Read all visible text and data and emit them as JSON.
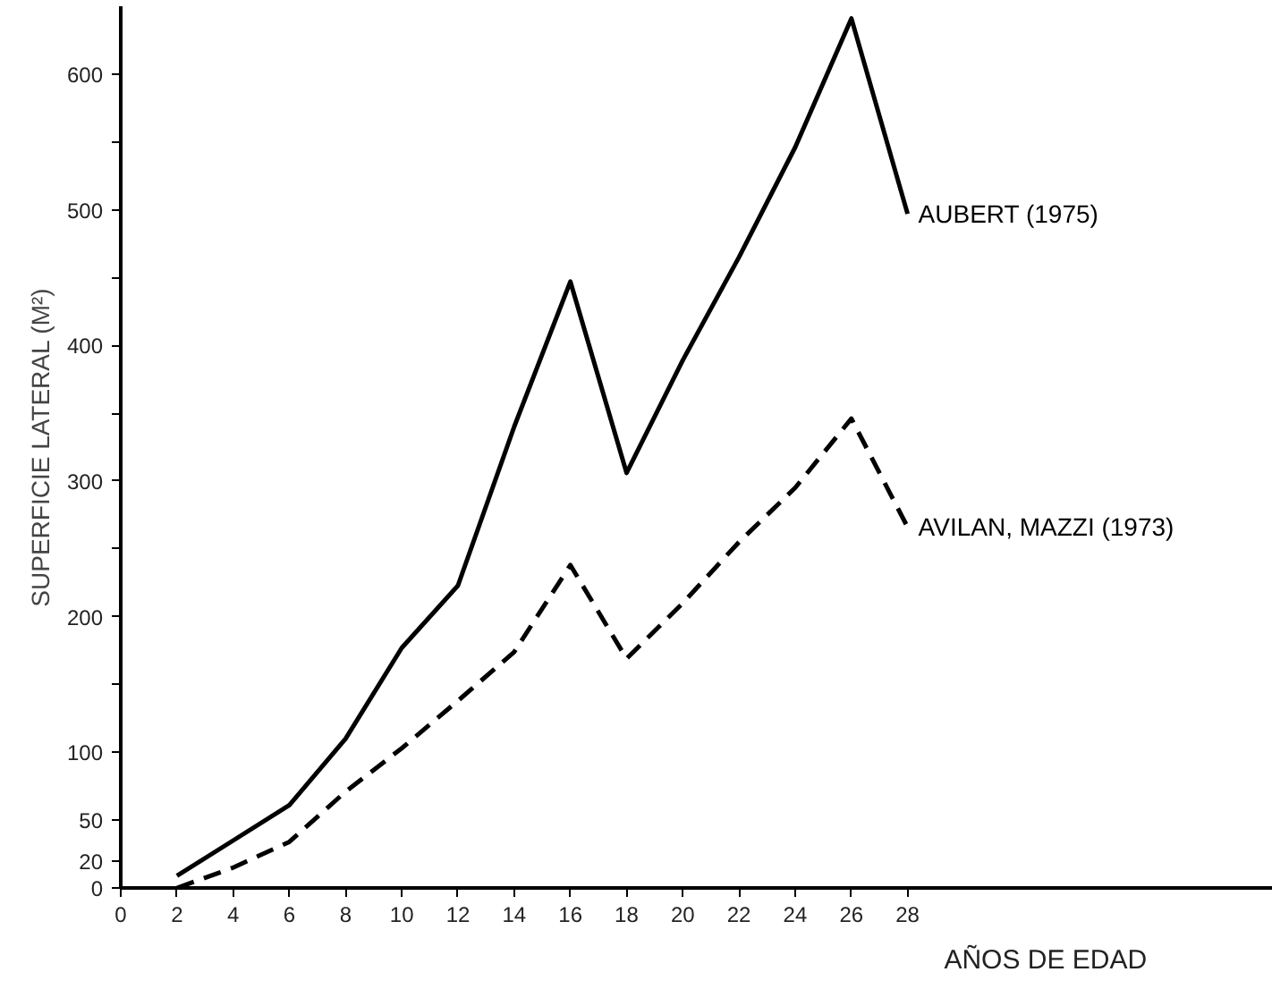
{
  "chart_data": {
    "type": "line",
    "xlabel": "AÑOS DE EDAD",
    "ylabel": "SUPERFICIE LATERAL (M²)",
    "series": [
      {
        "name": "AUBERT (1975)",
        "color": "#000000",
        "line_style": "solid",
        "x": [
          2,
          6,
          8,
          10,
          12,
          14,
          16,
          18,
          20,
          22,
          24,
          26,
          28
        ],
        "values": [
          9,
          61,
          110,
          177,
          223,
          340,
          447,
          306,
          389,
          465,
          546,
          641,
          497
        ]
      },
      {
        "name": "AVILAN, MAZZI (1973)",
        "color": "#000000",
        "line_style": "dashed",
        "x": [
          2,
          4,
          6,
          8,
          10,
          12,
          14,
          16,
          18,
          20,
          22,
          24,
          26,
          28
        ],
        "values": [
          0,
          15,
          34,
          71,
          103,
          138,
          174,
          238,
          169,
          210,
          255,
          295,
          346,
          266
        ]
      }
    ],
    "xlim": [
      0,
      41
    ],
    "ylim": [
      0,
      650
    ],
    "xticks": [
      0,
      2,
      4,
      6,
      8,
      10,
      12,
      14,
      16,
      18,
      20,
      22,
      24,
      26,
      28
    ],
    "yticks": [
      0,
      20,
      50,
      100,
      {
        "value": 150,
        "label": null
      },
      200,
      {
        "value": 250,
        "label": null
      },
      300,
      {
        "value": 350,
        "label": null
      },
      400,
      {
        "value": 450,
        "label": null
      },
      500,
      {
        "value": 550,
        "label": null
      },
      600
    ],
    "grid": false,
    "marker": "none"
  }
}
